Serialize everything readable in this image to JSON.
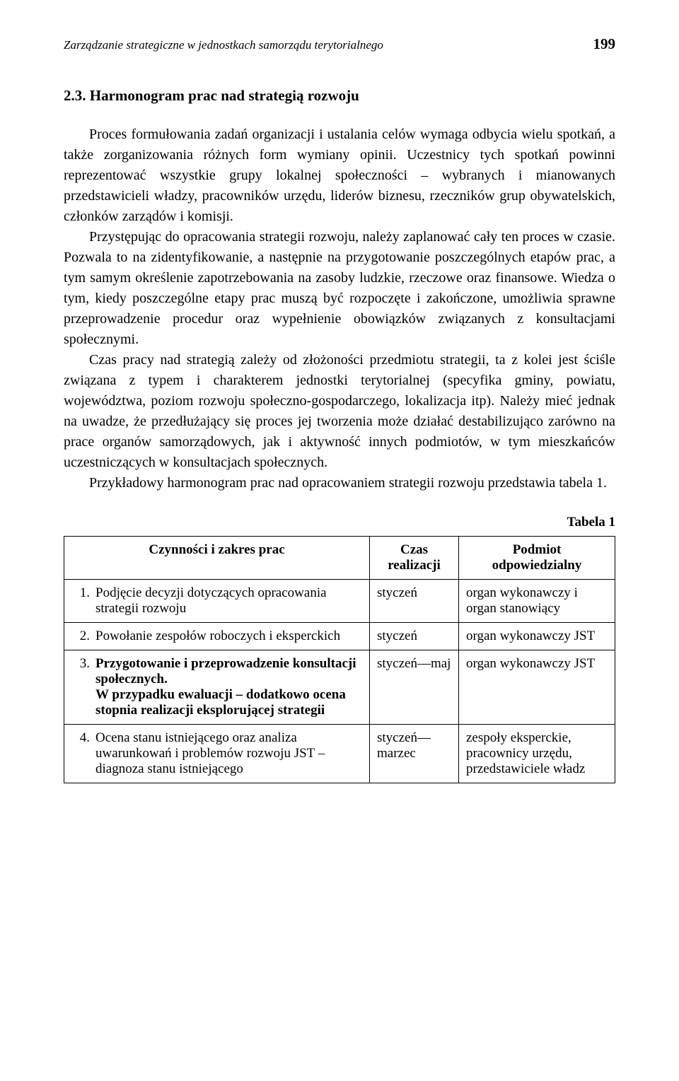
{
  "header": {
    "running_title": "Zarządzanie strategiczne w jednostkach samorządu terytorialnego",
    "page_number": "199"
  },
  "section": {
    "heading": "2.3. Harmonogram prac nad strategią rozwoju"
  },
  "paragraphs": {
    "p1": "Proces formułowania zadań organizacji i ustalania celów wymaga odbycia wielu spotkań, a także zorganizowania różnych form wymiany opinii. Uczestnicy tych spotkań powinni reprezentować wszystkie grupy lokalnej społeczności – wybranych i mianowanych przedstawicieli władzy, pracowników urzędu, liderów biznesu, rzeczników grup obywatelskich, członków zarządów i komisji.",
    "p2": "Przystępując do opracowania strategii rozwoju, należy zaplanować cały ten proces w czasie. Pozwala to na zidentyfikowanie, a następnie na przygotowanie poszczególnych etapów prac, a tym samym określenie zapotrzebowania na zasoby ludzkie, rzeczowe oraz finansowe. Wiedza o tym, kiedy poszczególne etapy prac muszą być rozpoczęte i zakończone, umożliwia sprawne przeprowadzenie procedur oraz wypełnienie obowiązków związanych z konsultacjami społecznymi.",
    "p3": "Czas pracy nad strategią zależy od złożoności przedmiotu strategii, ta z kolei jest ściśle związana z typem i charakterem jednostki terytorialnej (specyfika gminy, powiatu, województwa, poziom rozwoju społeczno-gospodarczego, lokalizacja itp). Należy mieć jednak na uwadze, że przedłużający się proces jej tworzenia może działać destabilizująco zarówno na prace organów samorządowych, jak i aktywność innych podmiotów, w tym mieszkańców uczestniczących w konsultacjach społecznych.",
    "p4": "Przykładowy harmonogram prac nad opracowaniem strategii rozwoju przedstawia tabela 1."
  },
  "table": {
    "label": "Tabela 1",
    "columns": {
      "activity": "Czynności i zakres prac",
      "time": "Czas realizacji",
      "responsible": "Podmiot odpowiedzialny"
    },
    "rows": [
      {
        "num": "1.",
        "activity": "Podjęcie decyzji dotyczących opracowania strategii rozwoju",
        "time": "styczeń",
        "responsible": "organ wykonawczy i organ stanowiący"
      },
      {
        "num": "2.",
        "activity": "Powołanie zespołów roboczych i eksperckich",
        "time": "styczeń",
        "responsible": "organ wykonawczy JST"
      },
      {
        "num": "3.",
        "activity_bold1": "Przygotowanie i przeprowadzenie konsultacji społecznych.",
        "activity_bold2": "W przypadku ewaluacji – dodatkowo ocena stopnia realizacji eksplorującej strategii",
        "time": "styczeń––maj",
        "responsible": "organ wykonawczy JST"
      },
      {
        "num": "4.",
        "activity": "Ocena stanu istniejącego oraz analiza uwarunkowań i problemów rozwoju JST – diagnoza stanu istniejącego",
        "time": "styczeń––marzec",
        "responsible": "zespoły eksperckie, pracownicy urzędu, przedstawiciele władz"
      }
    ]
  }
}
